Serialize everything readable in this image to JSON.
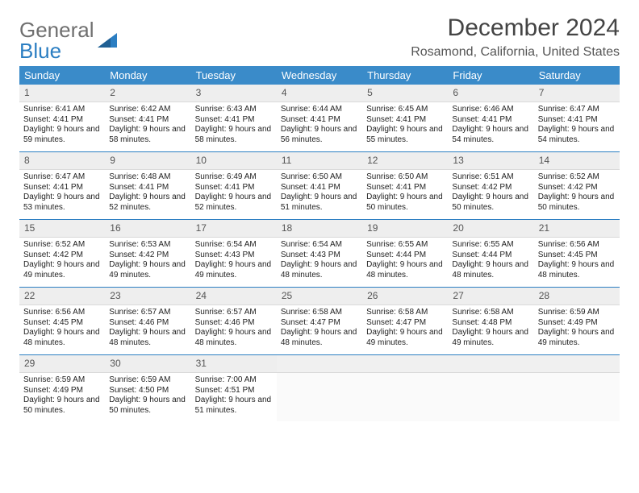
{
  "brand": {
    "word1": "General",
    "word2": "Blue"
  },
  "title": "December 2024",
  "location": "Rosamond, California, United States",
  "colors": {
    "header_bg": "#3a8bc9",
    "header_text": "#ffffff",
    "brand_gray": "#6f6f6f",
    "brand_blue": "#2b7ec2",
    "row_sep": "#2b7ec2",
    "daynum_bg": "#eeeeee"
  },
  "columns": [
    "Sunday",
    "Monday",
    "Tuesday",
    "Wednesday",
    "Thursday",
    "Friday",
    "Saturday"
  ],
  "weeks": [
    [
      {
        "n": "1",
        "sr": "6:41 AM",
        "ss": "4:41 PM",
        "dl": "9 hours and 59 minutes."
      },
      {
        "n": "2",
        "sr": "6:42 AM",
        "ss": "4:41 PM",
        "dl": "9 hours and 58 minutes."
      },
      {
        "n": "3",
        "sr": "6:43 AM",
        "ss": "4:41 PM",
        "dl": "9 hours and 58 minutes."
      },
      {
        "n": "4",
        "sr": "6:44 AM",
        "ss": "4:41 PM",
        "dl": "9 hours and 56 minutes."
      },
      {
        "n": "5",
        "sr": "6:45 AM",
        "ss": "4:41 PM",
        "dl": "9 hours and 55 minutes."
      },
      {
        "n": "6",
        "sr": "6:46 AM",
        "ss": "4:41 PM",
        "dl": "9 hours and 54 minutes."
      },
      {
        "n": "7",
        "sr": "6:47 AM",
        "ss": "4:41 PM",
        "dl": "9 hours and 54 minutes."
      }
    ],
    [
      {
        "n": "8",
        "sr": "6:47 AM",
        "ss": "4:41 PM",
        "dl": "9 hours and 53 minutes."
      },
      {
        "n": "9",
        "sr": "6:48 AM",
        "ss": "4:41 PM",
        "dl": "9 hours and 52 minutes."
      },
      {
        "n": "10",
        "sr": "6:49 AM",
        "ss": "4:41 PM",
        "dl": "9 hours and 52 minutes."
      },
      {
        "n": "11",
        "sr": "6:50 AM",
        "ss": "4:41 PM",
        "dl": "9 hours and 51 minutes."
      },
      {
        "n": "12",
        "sr": "6:50 AM",
        "ss": "4:41 PM",
        "dl": "9 hours and 50 minutes."
      },
      {
        "n": "13",
        "sr": "6:51 AM",
        "ss": "4:42 PM",
        "dl": "9 hours and 50 minutes."
      },
      {
        "n": "14",
        "sr": "6:52 AM",
        "ss": "4:42 PM",
        "dl": "9 hours and 50 minutes."
      }
    ],
    [
      {
        "n": "15",
        "sr": "6:52 AM",
        "ss": "4:42 PM",
        "dl": "9 hours and 49 minutes."
      },
      {
        "n": "16",
        "sr": "6:53 AM",
        "ss": "4:42 PM",
        "dl": "9 hours and 49 minutes."
      },
      {
        "n": "17",
        "sr": "6:54 AM",
        "ss": "4:43 PM",
        "dl": "9 hours and 49 minutes."
      },
      {
        "n": "18",
        "sr": "6:54 AM",
        "ss": "4:43 PM",
        "dl": "9 hours and 48 minutes."
      },
      {
        "n": "19",
        "sr": "6:55 AM",
        "ss": "4:44 PM",
        "dl": "9 hours and 48 minutes."
      },
      {
        "n": "20",
        "sr": "6:55 AM",
        "ss": "4:44 PM",
        "dl": "9 hours and 48 minutes."
      },
      {
        "n": "21",
        "sr": "6:56 AM",
        "ss": "4:45 PM",
        "dl": "9 hours and 48 minutes."
      }
    ],
    [
      {
        "n": "22",
        "sr": "6:56 AM",
        "ss": "4:45 PM",
        "dl": "9 hours and 48 minutes."
      },
      {
        "n": "23",
        "sr": "6:57 AM",
        "ss": "4:46 PM",
        "dl": "9 hours and 48 minutes."
      },
      {
        "n": "24",
        "sr": "6:57 AM",
        "ss": "4:46 PM",
        "dl": "9 hours and 48 minutes."
      },
      {
        "n": "25",
        "sr": "6:58 AM",
        "ss": "4:47 PM",
        "dl": "9 hours and 48 minutes."
      },
      {
        "n": "26",
        "sr": "6:58 AM",
        "ss": "4:47 PM",
        "dl": "9 hours and 49 minutes."
      },
      {
        "n": "27",
        "sr": "6:58 AM",
        "ss": "4:48 PM",
        "dl": "9 hours and 49 minutes."
      },
      {
        "n": "28",
        "sr": "6:59 AM",
        "ss": "4:49 PM",
        "dl": "9 hours and 49 minutes."
      }
    ],
    [
      {
        "n": "29",
        "sr": "6:59 AM",
        "ss": "4:49 PM",
        "dl": "9 hours and 50 minutes."
      },
      {
        "n": "30",
        "sr": "6:59 AM",
        "ss": "4:50 PM",
        "dl": "9 hours and 50 minutes."
      },
      {
        "n": "31",
        "sr": "7:00 AM",
        "ss": "4:51 PM",
        "dl": "9 hours and 51 minutes."
      },
      null,
      null,
      null,
      null
    ]
  ],
  "labels": {
    "sunrise": "Sunrise:",
    "sunset": "Sunset:",
    "daylight": "Daylight:"
  }
}
